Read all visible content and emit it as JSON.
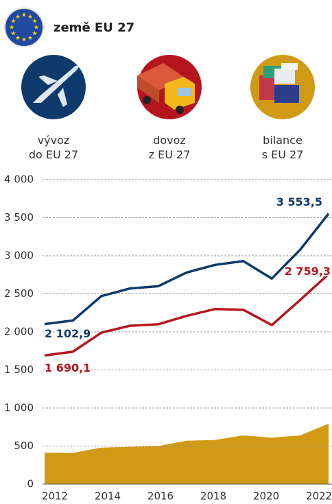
{
  "chart_data": {
    "type": "line",
    "title": "země EU 27",
    "x": [
      2012,
      2013,
      2014,
      2015,
      2016,
      2017,
      2018,
      2019,
      2020,
      2021,
      2022
    ],
    "xlim": [
      2012,
      2022
    ],
    "xticks": [
      2012,
      2014,
      2016,
      2018,
      2020,
      2022
    ],
    "ylim": [
      0,
      4000
    ],
    "yticks": [
      0,
      500,
      {
        "value": 1000,
        "label": "1 000"
      },
      {
        "value": 1500,
        "label": "1 500"
      },
      {
        "value": 2000,
        "label": "2 000"
      },
      {
        "value": 2500,
        "label": "2 500"
      },
      {
        "value": 3000,
        "label": "3 000"
      },
      {
        "value": 3500,
        "label": "3 500"
      },
      {
        "value": 4000,
        "label": "4 000"
      }
    ],
    "grid": true,
    "series": [
      {
        "name": "vývoz\ndo EU 27",
        "type": "line",
        "color": "#0d3a6b",
        "values": [
          2102.9,
          2150,
          2470,
          2570,
          2600,
          2780,
          2880,
          2930,
          2700,
          3080,
          3553.5
        ],
        "value_labels": [
          "2 102,9",
          null,
          null,
          null,
          null,
          null,
          null,
          null,
          null,
          null,
          "3 553,5"
        ]
      },
      {
        "name": "dovoz\nz EU 27",
        "type": "line",
        "color": "#b5161e",
        "values": [
          1690.1,
          1740,
          1990,
          2080,
          2100,
          2210,
          2300,
          2290,
          2090,
          2420,
          2759.3
        ],
        "value_labels": [
          "1 690,1",
          null,
          null,
          null,
          null,
          null,
          null,
          null,
          null,
          null,
          "2 759,3"
        ]
      },
      {
        "name": "bilance\ns EU 27",
        "type": "area",
        "color": "#d19a14",
        "values": [
          412.8,
          410,
          480,
          490,
          500,
          570,
          580,
          640,
          610,
          640,
          794.2
        ]
      }
    ]
  }
}
